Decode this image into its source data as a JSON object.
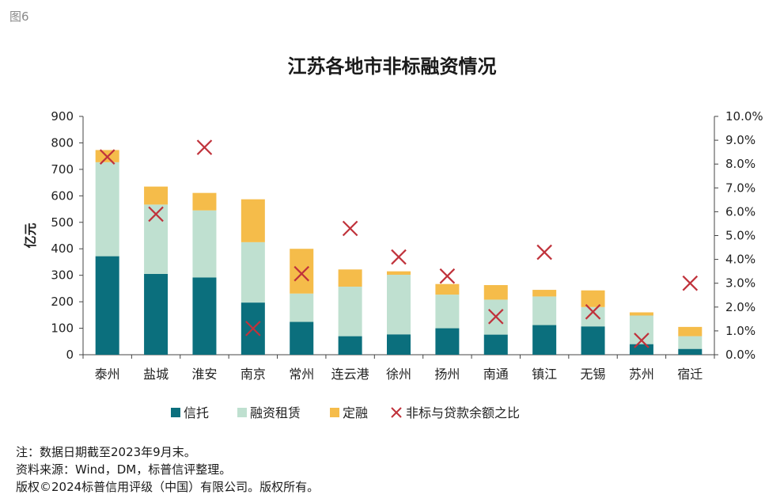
{
  "figure_label": "图6",
  "notes": [
    "注：数据日期截至2023年9月末。",
    "资料来源：Wind，DM，标普信评整理。",
    "版权©2024标普信用评级（中国）有限公司。版权所有。"
  ],
  "chart_data": {
    "type": "bar",
    "stacked": true,
    "title": "江苏各地市非标融资情况",
    "ylabel": "亿元",
    "ylim": [
      0,
      900
    ],
    "yticks": [
      "0",
      "100",
      "200",
      "300",
      "400",
      "500",
      "600",
      "700",
      "800",
      "900"
    ],
    "y2lim": [
      0,
      0.1
    ],
    "y2ticks": [
      "0.0%",
      "1.0%",
      "2.0%",
      "3.0%",
      "4.0%",
      "5.0%",
      "6.0%",
      "7.0%",
      "8.0%",
      "9.0%",
      "10.0%"
    ],
    "categories": [
      "泰州",
      "盐城",
      "淮安",
      "南京",
      "常州",
      "连云港",
      "徐州",
      "扬州",
      "南通",
      "镇江",
      "无锡",
      "苏州",
      "宿迁"
    ],
    "series": [
      {
        "name": "信托",
        "color": "#0b6f7d",
        "axis": "left",
        "values": [
          372,
          305,
          292,
          197,
          124,
          70,
          77,
          100,
          76,
          112,
          107,
          40,
          22
        ]
      },
      {
        "name": "融资租赁",
        "color": "#bfe0d0",
        "axis": "left",
        "values": [
          355,
          262,
          253,
          228,
          107,
          187,
          225,
          127,
          132,
          108,
          73,
          108,
          48
        ]
      },
      {
        "name": "定融",
        "color": "#f5bc4a",
        "axis": "left",
        "values": [
          46,
          68,
          66,
          162,
          169,
          65,
          13,
          40,
          55,
          25,
          63,
          12,
          35
        ]
      },
      {
        "name": "非标与贷款余额之比",
        "color": "#c0323b",
        "axis": "right",
        "marker": "x",
        "values": [
          0.083,
          0.059,
          0.087,
          0.011,
          0.034,
          0.053,
          0.041,
          0.033,
          0.016,
          0.043,
          0.018,
          0.006,
          0.03
        ]
      }
    ],
    "legend_position": "bottom",
    "grid": false
  }
}
